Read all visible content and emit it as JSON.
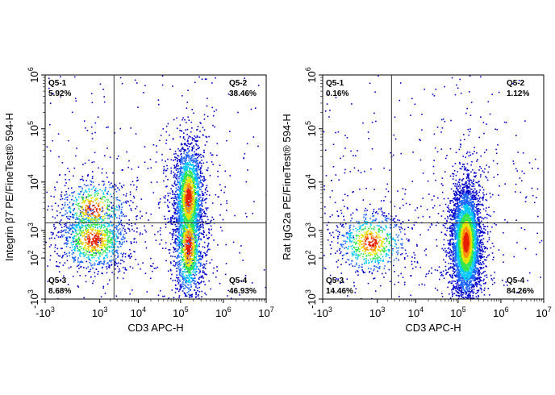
{
  "chart_data": [
    {
      "type": "scatter",
      "plot_kind": "flow cytometry density dot plot",
      "xlabel": "CD3 APC-H",
      "ylabel": "Integrin β7 PE/FineTest® 594-H",
      "x_scale": "biexponential",
      "y_scale": "biexponential",
      "x_ticks": [
        {
          "base": "-10",
          "exp": "3"
        },
        {
          "base": "10",
          "exp": "3"
        },
        {
          "base": "10",
          "exp": "4"
        },
        {
          "base": "10",
          "exp": "5"
        },
        {
          "base": "10",
          "exp": "6"
        },
        {
          "base": "10",
          "exp": "7"
        }
      ],
      "y_ticks": [
        {
          "base": "-10",
          "exp": "3"
        },
        {
          "base": "10",
          "exp": "2"
        },
        {
          "base": "10",
          "exp": "3"
        },
        {
          "base": "10",
          "exp": "4"
        },
        {
          "base": "10",
          "exp": "5"
        },
        {
          "base": "10",
          "exp": "6"
        }
      ],
      "gate": {
        "x": 2500,
        "y": 1500
      },
      "quadrants": [
        {
          "name": "Q5-1",
          "percent": "5.92%",
          "position": "top-left"
        },
        {
          "name": "Q5-2",
          "percent": "38.46%",
          "position": "top-right"
        },
        {
          "name": "Q5-3",
          "percent": "8.68%",
          "position": "bottom-left"
        },
        {
          "name": "Q5-4",
          "percent": "46.93%",
          "position": "bottom-right"
        }
      ],
      "clusters": [
        {
          "x_center": 600,
          "y_center": 600,
          "share": 0.2
        },
        {
          "x_center": 600,
          "y_center": 3000,
          "share": 0.1
        },
        {
          "x_center": 150000,
          "y_center": 5000,
          "share": 0.38
        },
        {
          "x_center": 150000,
          "y_center": 400,
          "share": 0.27
        }
      ],
      "colormap": [
        "#0000c8",
        "#1e64ff",
        "#00c8ff",
        "#32e650",
        "#e6e600",
        "#ff8c00",
        "#e61e00"
      ],
      "grid": false,
      "legend": "none"
    },
    {
      "type": "scatter",
      "plot_kind": "flow cytometry density dot plot",
      "xlabel": "CD3 APC-H",
      "ylabel": "Rat IgG2a PE/FineTest® 594-H",
      "x_scale": "biexponential",
      "y_scale": "biexponential",
      "x_ticks": [
        {
          "base": "-10",
          "exp": "3"
        },
        {
          "base": "10",
          "exp": "3"
        },
        {
          "base": "10",
          "exp": "4"
        },
        {
          "base": "10",
          "exp": "5"
        },
        {
          "base": "10",
          "exp": "6"
        },
        {
          "base": "10",
          "exp": "7"
        }
      ],
      "y_ticks": [
        {
          "base": "-10",
          "exp": "3"
        },
        {
          "base": "10",
          "exp": "2"
        },
        {
          "base": "10",
          "exp": "3"
        },
        {
          "base": "10",
          "exp": "4"
        },
        {
          "base": "10",
          "exp": "5"
        },
        {
          "base": "10",
          "exp": "6"
        }
      ],
      "gate": {
        "x": 2500,
        "y": 1500
      },
      "quadrants": [
        {
          "name": "Q5-1",
          "percent": "0.16%",
          "position": "top-left"
        },
        {
          "name": "Q5-2",
          "percent": "1.12%",
          "position": "top-right"
        },
        {
          "name": "Q5-3",
          "percent": "14.46%",
          "position": "bottom-left"
        },
        {
          "name": "Q5-4",
          "percent": "84.26%",
          "position": "bottom-right"
        }
      ],
      "clusters": [
        {
          "x_center": 600,
          "y_center": 500,
          "share": 0.15
        },
        {
          "x_center": 150000,
          "y_center": 500,
          "share": 0.84
        }
      ],
      "colormap": [
        "#0000c8",
        "#1e64ff",
        "#00c8ff",
        "#32e650",
        "#e6e600",
        "#ff8c00",
        "#e61e00"
      ],
      "grid": false,
      "legend": "none"
    }
  ]
}
